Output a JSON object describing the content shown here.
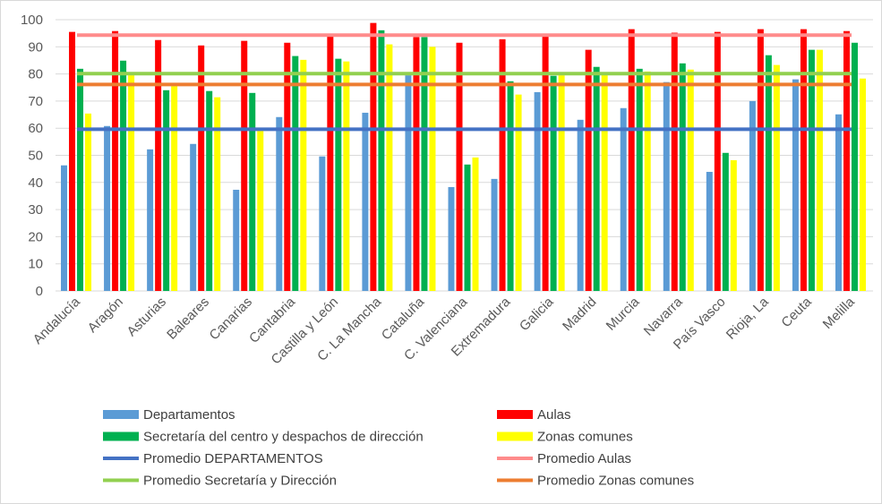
{
  "chart_data": {
    "type": "bar",
    "title": "",
    "xlabel": "",
    "ylabel": "",
    "ylim": [
      0,
      100
    ],
    "yticks": [
      0,
      10,
      20,
      30,
      40,
      50,
      60,
      70,
      80,
      90,
      100
    ],
    "grid": true,
    "legend_placement": "bottom",
    "categories": [
      "Andalucía",
      "Aragón",
      "Asturias",
      "Baleares",
      "Canarias",
      "Cantabria",
      "Castilla y León",
      "C. La Mancha",
      "Cataluña",
      "C. Valenciana",
      "Extremadura",
      "Galicia",
      "Madrid",
      "Murcia",
      "Navarra",
      "País Vasco",
      "Rioja, La",
      "Ceuta",
      "Melilla"
    ],
    "series": [
      {
        "name": "Departamentos",
        "color": "#5B9BD5",
        "values": [
          46.3,
          60.8,
          52.2,
          54.2,
          37.3,
          64.1,
          49.6,
          65.7,
          79.5,
          38.3,
          41.3,
          73.3,
          63.1,
          67.4,
          77.0,
          43.9,
          70.0,
          78.0,
          65.1
        ]
      },
      {
        "name": "Aulas",
        "color": "#FF0000",
        "values": [
          95.5,
          95.8,
          92.5,
          90.5,
          92.2,
          91.5,
          93.8,
          98.8,
          93.6,
          91.5,
          92.8,
          93.8,
          88.9,
          96.5,
          95.2,
          95.5,
          96.5,
          96.5,
          95.8
        ]
      },
      {
        "name": "Secretaría del centro y despachos de dirección",
        "color": "#00B050",
        "values": [
          81.9,
          84.9,
          74.0,
          73.7,
          73.0,
          86.6,
          85.6,
          96.1,
          93.6,
          46.6,
          77.3,
          79.3,
          82.6,
          81.9,
          83.9,
          50.9,
          86.9,
          88.9,
          91.5
        ]
      },
      {
        "name": "Zonas comunes",
        "color": "#FFFF00",
        "values": [
          65.4,
          79.5,
          75.5,
          71.4,
          59.0,
          85.2,
          84.6,
          90.9,
          90.0,
          49.2,
          72.4,
          79.5,
          79.8,
          80.9,
          81.6,
          48.2,
          83.3,
          88.9,
          78.3
        ]
      }
    ],
    "average_lines": [
      {
        "name": "Promedio DEPARTAMENTOS",
        "color": "#4472C4",
        "value": 59.6
      },
      {
        "name": "Promedio Aulas",
        "color": "#FF8B8B",
        "value": 94.3
      },
      {
        "name": "Promedio Secretaría y Dirección",
        "color": "#92D050",
        "value": 80.1
      },
      {
        "name": "Promedio Zonas comunes",
        "color": "#ED7D31",
        "value": 76.1
      }
    ],
    "legend": [
      "Departamentos",
      "Aulas",
      "Secretaría del centro y despachos de dirección",
      "Zonas comunes",
      "Promedio DEPARTAMENTOS",
      "Promedio Aulas",
      "Promedio Secretaría y Dirección",
      "Promedio Zonas comunes"
    ]
  }
}
